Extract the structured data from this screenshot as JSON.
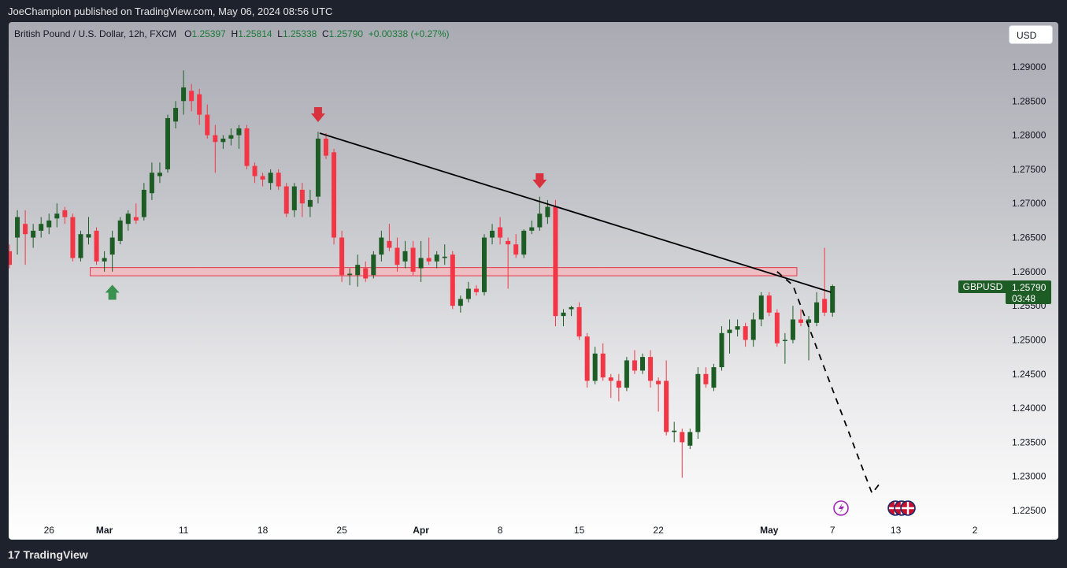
{
  "header": {
    "publisher_line": "JoeChampion published on TradingView.com, May 06, 2024 08:56 UTC"
  },
  "footer": {
    "brand": "TradingView",
    "logo_glyph": "17"
  },
  "legend": {
    "title": "British Pound / U.S. Dollar, 12h, FXCM",
    "open_label": "O",
    "open": "1.25397",
    "high_label": "H",
    "high": "1.25814",
    "low_label": "L",
    "low": "1.25338",
    "close_label": "C",
    "close": "1.25790",
    "change": "+0.00338 (+0.27%)"
  },
  "currency_button": "USD",
  "price_badge": {
    "symbol": "GBPUSD",
    "price": "1.25790",
    "countdown": "03:48"
  },
  "colors": {
    "up": "#1e5c25",
    "down": "#f23645",
    "zone_fill": "#f5b5bb",
    "zone_stroke": "#e5394a",
    "arrow_down": "#d8323f",
    "arrow_up": "#3a9150",
    "badge": "#1e5c25",
    "trend": "#000000"
  },
  "icons": [
    "lightning-event-icon",
    "uk-flag-icon",
    "uk-flag-icon",
    "uk-flag-icon"
  ],
  "chart_data": {
    "type": "candlestick",
    "symbol": "GBPUSD",
    "timeframe": "12h",
    "y_axis": {
      "min": 1.2225,
      "max": 1.2925,
      "ticks": [
        "1.29000",
        "1.28500",
        "1.28000",
        "1.27500",
        "1.27000",
        "1.26500",
        "1.26000",
        "1.25500",
        "1.25000",
        "1.24500",
        "1.24000",
        "1.23500",
        "1.23000",
        "1.22500"
      ]
    },
    "x_axis": {
      "ticks": [
        {
          "label": "26",
          "index": 5
        },
        {
          "label": "Mar",
          "index": 12,
          "bold": true
        },
        {
          "label": "11",
          "index": 22
        },
        {
          "label": "18",
          "index": 32
        },
        {
          "label": "25",
          "index": 42
        },
        {
          "label": "Apr",
          "index": 52,
          "bold": true
        },
        {
          "label": "8",
          "index": 62
        },
        {
          "label": "15",
          "index": 72
        },
        {
          "label": "22",
          "index": 82
        },
        {
          "label": "May",
          "index": 96,
          "bold": true
        },
        {
          "label": "7",
          "index": 104
        },
        {
          "label": "13",
          "index": 112
        },
        {
          "label": "2",
          "index": 122
        }
      ]
    },
    "candles": [
      {
        "o": 1.263,
        "h": 1.264,
        "l": 1.2605,
        "c": 1.261
      },
      {
        "o": 1.265,
        "h": 1.269,
        "l": 1.2625,
        "c": 1.268
      },
      {
        "o": 1.267,
        "h": 1.269,
        "l": 1.261,
        "c": 1.2655
      },
      {
        "o": 1.265,
        "h": 1.267,
        "l": 1.2635,
        "c": 1.266
      },
      {
        "o": 1.266,
        "h": 1.268,
        "l": 1.265,
        "c": 1.267
      },
      {
        "o": 1.2665,
        "h": 1.2685,
        "l": 1.2655,
        "c": 1.2675
      },
      {
        "o": 1.2678,
        "h": 1.27,
        "l": 1.2665,
        "c": 1.2685
      },
      {
        "o": 1.269,
        "h": 1.2695,
        "l": 1.267,
        "c": 1.268
      },
      {
        "o": 1.268,
        "h": 1.2685,
        "l": 1.2615,
        "c": 1.262
      },
      {
        "o": 1.262,
        "h": 1.266,
        "l": 1.2615,
        "c": 1.2655
      },
      {
        "o": 1.265,
        "h": 1.268,
        "l": 1.264,
        "c": 1.2655
      },
      {
        "o": 1.266,
        "h": 1.2665,
        "l": 1.261,
        "c": 1.2615
      },
      {
        "o": 1.2615,
        "h": 1.263,
        "l": 1.26,
        "c": 1.262
      },
      {
        "o": 1.2625,
        "h": 1.266,
        "l": 1.26,
        "c": 1.265
      },
      {
        "o": 1.2645,
        "h": 1.268,
        "l": 1.264,
        "c": 1.2675
      },
      {
        "o": 1.267,
        "h": 1.269,
        "l": 1.266,
        "c": 1.2685
      },
      {
        "o": 1.268,
        "h": 1.27,
        "l": 1.267,
        "c": 1.2675
      },
      {
        "o": 1.268,
        "h": 1.273,
        "l": 1.2675,
        "c": 1.272
      },
      {
        "o": 1.2715,
        "h": 1.276,
        "l": 1.2705,
        "c": 1.2745
      },
      {
        "o": 1.274,
        "h": 1.276,
        "l": 1.273,
        "c": 1.2745
      },
      {
        "o": 1.275,
        "h": 1.283,
        "l": 1.2745,
        "c": 1.2825
      },
      {
        "o": 1.282,
        "h": 1.285,
        "l": 1.281,
        "c": 1.284
      },
      {
        "o": 1.285,
        "h": 1.2895,
        "l": 1.283,
        "c": 1.287
      },
      {
        "o": 1.2865,
        "h": 1.2875,
        "l": 1.2835,
        "c": 1.285
      },
      {
        "o": 1.286,
        "h": 1.2868,
        "l": 1.2815,
        "c": 1.283
      },
      {
        "o": 1.283,
        "h": 1.2845,
        "l": 1.2795,
        "c": 1.28
      },
      {
        "o": 1.28,
        "h": 1.2815,
        "l": 1.2745,
        "c": 1.279
      },
      {
        "o": 1.279,
        "h": 1.28,
        "l": 1.278,
        "c": 1.2795
      },
      {
        "o": 1.2795,
        "h": 1.281,
        "l": 1.2785,
        "c": 1.28
      },
      {
        "o": 1.28,
        "h": 1.2815,
        "l": 1.278,
        "c": 1.281
      },
      {
        "o": 1.281,
        "h": 1.2815,
        "l": 1.275,
        "c": 1.2755
      },
      {
        "o": 1.2755,
        "h": 1.276,
        "l": 1.273,
        "c": 1.274
      },
      {
        "o": 1.274,
        "h": 1.2745,
        "l": 1.2725,
        "c": 1.2735
      },
      {
        "o": 1.273,
        "h": 1.275,
        "l": 1.272,
        "c": 1.2745
      },
      {
        "o": 1.2745,
        "h": 1.275,
        "l": 1.272,
        "c": 1.2725
      },
      {
        "o": 1.2725,
        "h": 1.273,
        "l": 1.268,
        "c": 1.2685
      },
      {
        "o": 1.269,
        "h": 1.273,
        "l": 1.268,
        "c": 1.2725
      },
      {
        "o": 1.272,
        "h": 1.273,
        "l": 1.268,
        "c": 1.27
      },
      {
        "o": 1.2695,
        "h": 1.272,
        "l": 1.268,
        "c": 1.2705
      },
      {
        "o": 1.271,
        "h": 1.2805,
        "l": 1.27,
        "c": 1.2795
      },
      {
        "o": 1.2795,
        "h": 1.2803,
        "l": 1.2765,
        "c": 1.277
      },
      {
        "o": 1.2775,
        "h": 1.278,
        "l": 1.264,
        "c": 1.265
      },
      {
        "o": 1.265,
        "h": 1.266,
        "l": 1.2585,
        "c": 1.2595
      },
      {
        "o": 1.2595,
        "h": 1.2605,
        "l": 1.258,
        "c": 1.2597
      },
      {
        "o": 1.2595,
        "h": 1.2625,
        "l": 1.2578,
        "c": 1.261
      },
      {
        "o": 1.2605,
        "h": 1.2615,
        "l": 1.2585,
        "c": 1.259
      },
      {
        "o": 1.2595,
        "h": 1.263,
        "l": 1.259,
        "c": 1.2625
      },
      {
        "o": 1.2625,
        "h": 1.266,
        "l": 1.2615,
        "c": 1.265
      },
      {
        "o": 1.2645,
        "h": 1.267,
        "l": 1.263,
        "c": 1.2635
      },
      {
        "o": 1.2635,
        "h": 1.265,
        "l": 1.26,
        "c": 1.261
      },
      {
        "o": 1.2615,
        "h": 1.2645,
        "l": 1.2605,
        "c": 1.263
      },
      {
        "o": 1.2635,
        "h": 1.2645,
        "l": 1.2595,
        "c": 1.26
      },
      {
        "o": 1.2605,
        "h": 1.2645,
        "l": 1.2585,
        "c": 1.262
      },
      {
        "o": 1.262,
        "h": 1.265,
        "l": 1.261,
        "c": 1.2615
      },
      {
        "o": 1.2615,
        "h": 1.263,
        "l": 1.2605,
        "c": 1.2625
      },
      {
        "o": 1.262,
        "h": 1.264,
        "l": 1.261,
        "c": 1.2622
      },
      {
        "o": 1.2625,
        "h": 1.263,
        "l": 1.2545,
        "c": 1.255
      },
      {
        "o": 1.255,
        "h": 1.2565,
        "l": 1.254,
        "c": 1.256
      },
      {
        "o": 1.256,
        "h": 1.2585,
        "l": 1.2555,
        "c": 1.2575
      },
      {
        "o": 1.2575,
        "h": 1.258,
        "l": 1.2565,
        "c": 1.257
      },
      {
        "o": 1.257,
        "h": 1.2655,
        "l": 1.2565,
        "c": 1.265
      },
      {
        "o": 1.265,
        "h": 1.267,
        "l": 1.264,
        "c": 1.266
      },
      {
        "o": 1.2665,
        "h": 1.268,
        "l": 1.264,
        "c": 1.265
      },
      {
        "o": 1.2645,
        "h": 1.265,
        "l": 1.2575,
        "c": 1.264
      },
      {
        "o": 1.264,
        "h": 1.2655,
        "l": 1.262,
        "c": 1.2625
      },
      {
        "o": 1.2625,
        "h": 1.2662,
        "l": 1.262,
        "c": 1.266
      },
      {
        "o": 1.266,
        "h": 1.2675,
        "l": 1.2655,
        "c": 1.2665
      },
      {
        "o": 1.2665,
        "h": 1.271,
        "l": 1.266,
        "c": 1.2685
      },
      {
        "o": 1.268,
        "h": 1.2705,
        "l": 1.267,
        "c": 1.2695
      },
      {
        "o": 1.2695,
        "h": 1.2705,
        "l": 1.252,
        "c": 1.2535
      },
      {
        "o": 1.2535,
        "h": 1.2545,
        "l": 1.252,
        "c": 1.254
      },
      {
        "o": 1.2545,
        "h": 1.255,
        "l": 1.2535,
        "c": 1.2548
      },
      {
        "o": 1.2548,
        "h": 1.2555,
        "l": 1.25,
        "c": 1.2505
      },
      {
        "o": 1.2505,
        "h": 1.251,
        "l": 1.243,
        "c": 1.244
      },
      {
        "o": 1.244,
        "h": 1.249,
        "l": 1.2435,
        "c": 1.248
      },
      {
        "o": 1.248,
        "h": 1.2495,
        "l": 1.244,
        "c": 1.2445
      },
      {
        "o": 1.2445,
        "h": 1.245,
        "l": 1.2415,
        "c": 1.244
      },
      {
        "o": 1.244,
        "h": 1.245,
        "l": 1.241,
        "c": 1.243
      },
      {
        "o": 1.243,
        "h": 1.2475,
        "l": 1.2425,
        "c": 1.247
      },
      {
        "o": 1.247,
        "h": 1.2485,
        "l": 1.245,
        "c": 1.2455
      },
      {
        "o": 1.2455,
        "h": 1.248,
        "l": 1.245,
        "c": 1.2475
      },
      {
        "o": 1.2475,
        "h": 1.2485,
        "l": 1.243,
        "c": 1.244
      },
      {
        "o": 1.244,
        "h": 1.2445,
        "l": 1.2395,
        "c": 1.2435
      },
      {
        "o": 1.244,
        "h": 1.247,
        "l": 1.236,
        "c": 1.2365
      },
      {
        "o": 1.2365,
        "h": 1.238,
        "l": 1.235,
        "c": 1.2367
      },
      {
        "o": 1.2365,
        "h": 1.237,
        "l": 1.2298,
        "c": 1.235
      },
      {
        "o": 1.2345,
        "h": 1.237,
        "l": 1.234,
        "c": 1.2365
      },
      {
        "o": 1.2365,
        "h": 1.246,
        "l": 1.2355,
        "c": 1.245
      },
      {
        "o": 1.245,
        "h": 1.246,
        "l": 1.243,
        "c": 1.2435
      },
      {
        "o": 1.243,
        "h": 1.2465,
        "l": 1.2425,
        "c": 1.246
      },
      {
        "o": 1.246,
        "h": 1.252,
        "l": 1.2455,
        "c": 1.251
      },
      {
        "o": 1.251,
        "h": 1.253,
        "l": 1.248,
        "c": 1.2515
      },
      {
        "o": 1.2515,
        "h": 1.253,
        "l": 1.2505,
        "c": 1.252
      },
      {
        "o": 1.252,
        "h": 1.2525,
        "l": 1.249,
        "c": 1.25
      },
      {
        "o": 1.25,
        "h": 1.254,
        "l": 1.249,
        "c": 1.253
      },
      {
        "o": 1.253,
        "h": 1.257,
        "l": 1.252,
        "c": 1.2565
      },
      {
        "o": 1.2565,
        "h": 1.257,
        "l": 1.2535,
        "c": 1.254
      },
      {
        "o": 1.254,
        "h": 1.2545,
        "l": 1.249,
        "c": 1.2495
      },
      {
        "o": 1.25,
        "h": 1.251,
        "l": 1.2465,
        "c": 1.25
      },
      {
        "o": 1.25,
        "h": 1.255,
        "l": 1.2495,
        "c": 1.253
      },
      {
        "o": 1.253,
        "h": 1.2545,
        "l": 1.252,
        "c": 1.2525
      },
      {
        "o": 1.2525,
        "h": 1.2535,
        "l": 1.247,
        "c": 1.253
      },
      {
        "o": 1.2525,
        "h": 1.257,
        "l": 1.252,
        "c": 1.2555
      },
      {
        "o": 1.256,
        "h": 1.2635,
        "l": 1.2535,
        "c": 1.254
      },
      {
        "o": 1.254,
        "h": 1.2581,
        "l": 1.2534,
        "c": 1.2579
      }
    ],
    "support_zone": {
      "from": 1.2594,
      "to": 1.2606,
      "start_index": 10,
      "end_index": 99
    },
    "trendline": [
      {
        "index": 39,
        "price": 1.2803
      },
      {
        "index": 104,
        "price": 1.257
      }
    ],
    "projection": [
      {
        "index": 97,
        "price": 1.26
      },
      {
        "index": 99,
        "price": 1.258
      },
      {
        "index": 109,
        "price": 1.2275
      },
      {
        "index": 110,
        "price": 1.229
      }
    ],
    "markers": [
      {
        "type": "arrow-down",
        "index": 39,
        "price": 1.281
      },
      {
        "type": "arrow-down",
        "index": 67,
        "price": 1.2713
      },
      {
        "type": "arrow-up",
        "index": 13,
        "price": 1.259
      }
    ]
  }
}
